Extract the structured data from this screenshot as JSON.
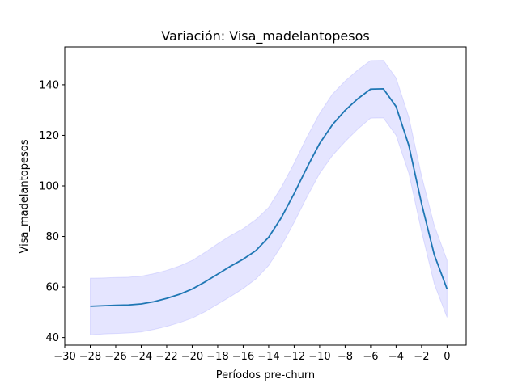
{
  "chart_data": {
    "type": "line",
    "title": "Variación: Visa_madelantopesos",
    "xlabel": "Períodos pre-churn",
    "ylabel": "Visa_madelantopesos",
    "xlim": [
      -30,
      1.5
    ],
    "ylim": [
      37,
      155
    ],
    "xticks": [
      -30,
      -28,
      -26,
      -24,
      -22,
      -20,
      -18,
      -16,
      -14,
      -12,
      -10,
      -8,
      -6,
      -4,
      -2,
      0
    ],
    "xtick_labels": [
      "−30",
      "−28",
      "−26",
      "−24",
      "−22",
      "−20",
      "−18",
      "−16",
      "−14",
      "−12",
      "−10",
      "−8",
      "−6",
      "−4",
      "−2",
      "0"
    ],
    "yticks": [
      40,
      60,
      80,
      100,
      120,
      140
    ],
    "ytick_labels": [
      "40",
      "60",
      "80",
      "100",
      "120",
      "140"
    ],
    "grid": false,
    "legend": false,
    "line_color": "#1f77b4",
    "band_color": "#0000ff",
    "series": [
      {
        "x": [
          -28,
          -27,
          -26,
          -25,
          -24,
          -23,
          -22,
          -21,
          -20,
          -19,
          -18,
          -17,
          -16,
          -15,
          -14,
          -13,
          -12,
          -11,
          -10,
          -9,
          -8,
          -7,
          -6,
          -5,
          -4,
          -3,
          -2,
          -1,
          0
        ],
        "y": [
          52.4,
          52.6,
          52.8,
          52.9,
          53.3,
          54.2,
          55.5,
          57.1,
          59.2,
          62.0,
          65.1,
          68.2,
          71.0,
          74.4,
          79.7,
          87.5,
          97.0,
          107.2,
          116.8,
          124.2,
          129.9,
          134.5,
          138.3,
          138.4,
          131.4,
          116.0,
          93.0,
          72.7,
          59.2
        ],
        "lower": [
          41.0,
          41.4,
          41.6,
          41.8,
          42.2,
          43.2,
          44.4,
          45.9,
          47.7,
          50.2,
          53.2,
          56.2,
          59.4,
          63.2,
          68.5,
          76.2,
          85.6,
          95.6,
          104.9,
          112.0,
          117.5,
          122.5,
          126.8,
          126.9,
          120.0,
          105.0,
          82.0,
          61.2,
          48.0
        ],
        "upper": [
          63.5,
          63.6,
          63.8,
          63.9,
          64.3,
          65.3,
          66.6,
          68.3,
          70.5,
          73.7,
          77.1,
          80.3,
          83.1,
          86.7,
          91.5,
          99.5,
          109.0,
          119.3,
          128.7,
          136.3,
          141.5,
          145.9,
          149.6,
          149.7,
          142.7,
          127.2,
          104.0,
          84.3,
          70.6
        ]
      }
    ]
  }
}
